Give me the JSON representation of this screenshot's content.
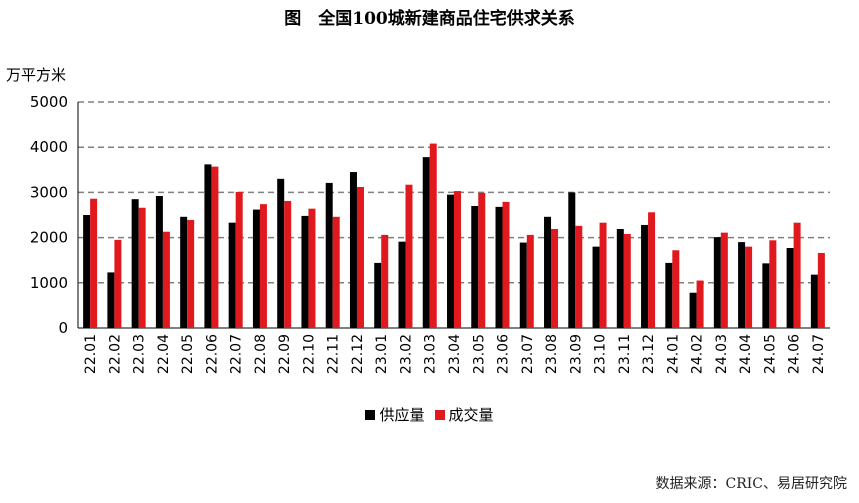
{
  "title": "图　全国100城新建商品住宅供求关系",
  "unit_label": "万平方米",
  "source": "数据来源：CRIC、易居研究院",
  "colors": {
    "supply": "#000000",
    "deal": "#e0191e",
    "grid": "#808080"
  },
  "chart_data": {
    "type": "bar",
    "title": "图　全国100城新建商品住宅供求关系",
    "ylabel": "万平方米",
    "xlabel": "",
    "ylim": [
      0,
      5000
    ],
    "yticks": [
      0,
      1000,
      2000,
      3000,
      4000,
      5000
    ],
    "grid": true,
    "legend_position": "bottom",
    "categories": [
      "22.01",
      "22.02",
      "22.03",
      "22.04",
      "22.05",
      "22.06",
      "22.07",
      "22.08",
      "22.09",
      "22.10",
      "22.11",
      "22.12",
      "23.01",
      "23.02",
      "23.03",
      "23.04",
      "23.05",
      "23.06",
      "23.07",
      "23.08",
      "23.09",
      "23.10",
      "23.11",
      "23.12",
      "24.01",
      "24.02",
      "24.03",
      "24.04",
      "24.05",
      "24.06",
      "24.07"
    ],
    "series": [
      {
        "name": "供应量",
        "values": [
          2500,
          1230,
          2850,
          2920,
          2460,
          3620,
          2330,
          2620,
          3300,
          2480,
          3210,
          3450,
          1440,
          1910,
          3780,
          2950,
          2700,
          2680,
          1890,
          2460,
          3000,
          1800,
          2190,
          2280,
          1440,
          780,
          2010,
          1900,
          1430,
          1770,
          1180
        ]
      },
      {
        "name": "成交量",
        "values": [
          2860,
          1950,
          2660,
          2130,
          2390,
          3570,
          3010,
          2740,
          2810,
          2640,
          2460,
          3120,
          2060,
          3170,
          4080,
          3030,
          2990,
          2790,
          2060,
          2190,
          2260,
          2330,
          2080,
          2560,
          1720,
          1050,
          2110,
          1800,
          1940,
          2330,
          1660
        ]
      }
    ]
  }
}
